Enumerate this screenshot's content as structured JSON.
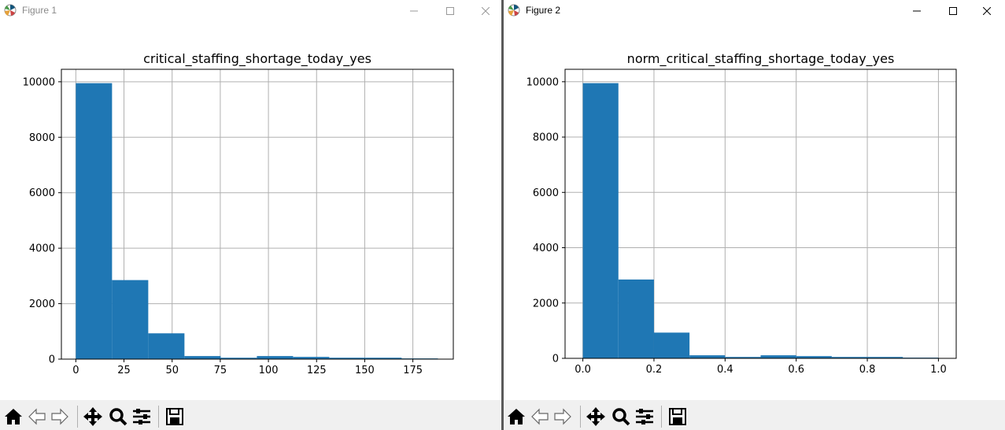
{
  "windows": [
    {
      "title": "Figure 1",
      "chart_data": {
        "type": "bar",
        "title": "critical_staffing_shortage_today_yes",
        "xlabel": "",
        "ylabel": "",
        "bin_edges": [
          0,
          18.8,
          37.6,
          56.4,
          75.2,
          94.0,
          112.8,
          131.6,
          150.4,
          169.2,
          188.0
        ],
        "values": [
          9950,
          2850,
          930,
          110,
          50,
          110,
          80,
          50,
          50,
          25
        ],
        "xlim": [
          -7.5,
          196
        ],
        "ylim": [
          0,
          10450
        ],
        "xticks": [
          0,
          25,
          50,
          75,
          100,
          125,
          150,
          175
        ],
        "xtick_labels": [
          "0",
          "25",
          "50",
          "75",
          "100",
          "125",
          "150",
          "175"
        ],
        "yticks": [
          0,
          2000,
          4000,
          6000,
          8000,
          10000
        ],
        "ytick_labels": [
          "0",
          "2000",
          "4000",
          "6000",
          "8000",
          "10000"
        ],
        "grid": true,
        "color": "#1f77b4"
      }
    },
    {
      "title": "Figure 2",
      "chart_data": {
        "type": "bar",
        "title": "norm_critical_staffing_shortage_today_yes",
        "xlabel": "",
        "ylabel": "",
        "bin_edges": [
          0,
          0.1,
          0.2,
          0.3,
          0.4,
          0.5,
          0.6,
          0.7,
          0.8,
          0.9,
          1.0
        ],
        "values": [
          9950,
          2850,
          930,
          110,
          50,
          110,
          80,
          50,
          50,
          25
        ],
        "xlim": [
          -0.05,
          1.05
        ],
        "ylim": [
          0,
          10450
        ],
        "xticks": [
          0.0,
          0.2,
          0.4,
          0.6,
          0.8,
          1.0
        ],
        "xtick_labels": [
          "0.0",
          "0.2",
          "0.4",
          "0.6",
          "0.8",
          "1.0"
        ],
        "yticks": [
          0,
          2000,
          4000,
          6000,
          8000,
          10000
        ],
        "ytick_labels": [
          "0",
          "2000",
          "4000",
          "6000",
          "8000",
          "10000"
        ],
        "grid": true,
        "color": "#1f77b4"
      }
    }
  ],
  "window_controls": {
    "icons": [
      "minimize-icon",
      "maximize-icon",
      "close-icon"
    ]
  },
  "toolbar": {
    "icons": [
      "home-icon",
      "back-arrow-icon",
      "forward-arrow-icon",
      "pan-icon",
      "zoom-icon",
      "configure-subplots-icon",
      "save-icon"
    ],
    "coords": ""
  },
  "colors": {
    "bar": "#1f77b4",
    "grid": "#b0b0b0",
    "toolbar_bg": "#f0f0f0",
    "divider": "#5a5a5a"
  }
}
